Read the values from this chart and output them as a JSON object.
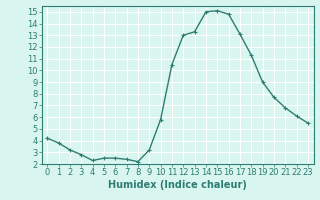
{
  "x": [
    0,
    1,
    2,
    3,
    4,
    5,
    6,
    7,
    8,
    9,
    10,
    11,
    12,
    13,
    14,
    15,
    16,
    17,
    18,
    19,
    20,
    21,
    22,
    23
  ],
  "y": [
    4.2,
    3.8,
    3.2,
    2.8,
    2.3,
    2.5,
    2.5,
    2.4,
    2.2,
    3.2,
    5.8,
    10.5,
    13.0,
    13.3,
    15.0,
    15.1,
    14.8,
    13.1,
    11.3,
    9.0,
    7.7,
    6.8,
    6.1,
    5.5
  ],
  "line_color": "#2e7d72",
  "marker": "+",
  "marker_size": 3,
  "xlabel": "Humidex (Indice chaleur)",
  "xlim": [
    -0.5,
    23.5
  ],
  "ylim": [
    2,
    15.5
  ],
  "yticks": [
    2,
    3,
    4,
    5,
    6,
    7,
    8,
    9,
    10,
    11,
    12,
    13,
    14,
    15
  ],
  "xticks": [
    0,
    1,
    2,
    3,
    4,
    5,
    6,
    7,
    8,
    9,
    10,
    11,
    12,
    13,
    14,
    15,
    16,
    17,
    18,
    19,
    20,
    21,
    22,
    23
  ],
  "bg_color": "#d8f5f0",
  "grid_color": "#ffffff",
  "line_teal": "#2e7d72",
  "xlabel_fontsize": 7,
  "tick_fontsize": 6,
  "linewidth": 1.0,
  "markeredgewidth": 0.8
}
